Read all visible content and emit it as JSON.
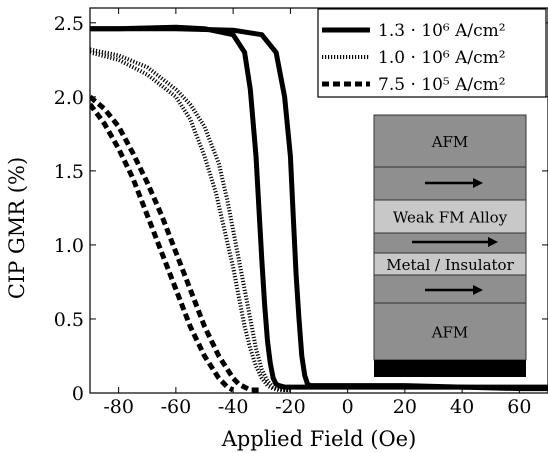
{
  "chart_data": {
    "type": "line",
    "title": "",
    "xlabel": "Applied Field (Oe)",
    "ylabel": "CIP GMR (%)",
    "xlim": [
      -90,
      70
    ],
    "ylim": [
      0,
      2.6
    ],
    "xticks": [
      -80,
      -60,
      -40,
      -20,
      0,
      20,
      40,
      60
    ],
    "yticks": [
      0,
      0.5,
      1.0,
      1.5,
      2.0,
      2.5
    ],
    "xtick_labels": [
      "-80",
      "-60",
      "-40",
      "-20",
      "0",
      "20",
      "40",
      "60"
    ],
    "ytick_labels": [
      "0",
      "0.5",
      "1.0",
      "1.5",
      "2.0",
      "2.5"
    ],
    "grid": false,
    "legend_position": "top-right",
    "series": [
      {
        "name": "1.3 · 10⁶ A/cm²",
        "style": "solid",
        "branches": [
          {
            "x": [
              -90,
              -80,
              -60,
              -50,
              -40,
              -36,
              -34,
              -32,
              -30,
              -29,
              -28,
              -27,
              -26,
              -25,
              -24,
              -22,
              -20,
              -10,
              0,
              20,
              40,
              60,
              70
            ],
            "y": [
              2.46,
              2.46,
              2.47,
              2.46,
              2.42,
              2.3,
              2.05,
              1.6,
              0.9,
              0.6,
              0.35,
              0.2,
              0.1,
              0.06,
              0.05,
              0.04,
              0.04,
              0.04,
              0.04,
              0.04,
              0.04,
              0.03,
              0.03
            ]
          },
          {
            "x": [
              -90,
              -60,
              -40,
              -30,
              -25,
              -22,
              -20,
              -19,
              -18,
              -17,
              -16,
              -15,
              -14,
              -13,
              -12,
              0,
              20,
              40,
              60,
              70
            ],
            "y": [
              2.46,
              2.46,
              2.45,
              2.42,
              2.3,
              2.0,
              1.6,
              1.2,
              0.8,
              0.5,
              0.25,
              0.12,
              0.06,
              0.05,
              0.05,
              0.05,
              0.05,
              0.04,
              0.04,
              0.04
            ]
          }
        ]
      },
      {
        "name": "1.0 · 10⁶ A/cm²",
        "style": "dotted",
        "branches": [
          {
            "x": [
              -90,
              -80,
              -70,
              -60,
              -55,
              -50,
              -46,
              -43,
              -40,
              -38,
              -36,
              -34,
              -32,
              -30,
              -28,
              -26,
              -24,
              -22,
              -20
            ],
            "y": [
              2.3,
              2.25,
              2.15,
              2.0,
              1.85,
              1.6,
              1.35,
              1.1,
              0.85,
              0.65,
              0.45,
              0.3,
              0.18,
              0.1,
              0.05,
              0.03,
              0.02,
              0.02,
              0.02
            ]
          },
          {
            "x": [
              -90,
              -80,
              -70,
              -60,
              -55,
              -50,
              -45,
              -42,
              -39,
              -36,
              -34,
              -32,
              -30,
              -28,
              -26,
              -24,
              -22,
              -20
            ],
            "y": [
              2.32,
              2.28,
              2.2,
              2.05,
              1.95,
              1.8,
              1.55,
              1.3,
              1.0,
              0.7,
              0.5,
              0.3,
              0.16,
              0.08,
              0.04,
              0.03,
              0.02,
              0.02
            ]
          }
        ]
      },
      {
        "name": "7.5 · 10⁵ A/cm²",
        "style": "dashed",
        "branches": [
          {
            "x": [
              -90,
              -85,
              -80,
              -75,
              -70,
              -65,
              -60,
              -55,
              -50,
              -45,
              -42,
              -40
            ],
            "y": [
              1.95,
              1.82,
              1.65,
              1.45,
              1.2,
              0.95,
              0.7,
              0.45,
              0.25,
              0.1,
              0.04,
              0.02
            ]
          },
          {
            "x": [
              -90,
              -85,
              -80,
              -75,
              -70,
              -65,
              -60,
              -55,
              -50,
              -45,
              -40,
              -38,
              -36,
              -34,
              -32,
              -30
            ],
            "y": [
              2.0,
              1.92,
              1.8,
              1.62,
              1.42,
              1.2,
              0.95,
              0.7,
              0.45,
              0.25,
              0.1,
              0.06,
              0.04,
              0.02,
              0.02,
              0.02
            ]
          }
        ]
      }
    ]
  },
  "inset": {
    "layers": [
      "AFM",
      "",
      "Weak FM Alloy",
      "",
      "Metal / Insulator",
      "",
      "AFM",
      ""
    ],
    "colors": {
      "layer": "#8f8f8f",
      "highlight": "#c8c8c8",
      "substrate": "#000000"
    }
  }
}
